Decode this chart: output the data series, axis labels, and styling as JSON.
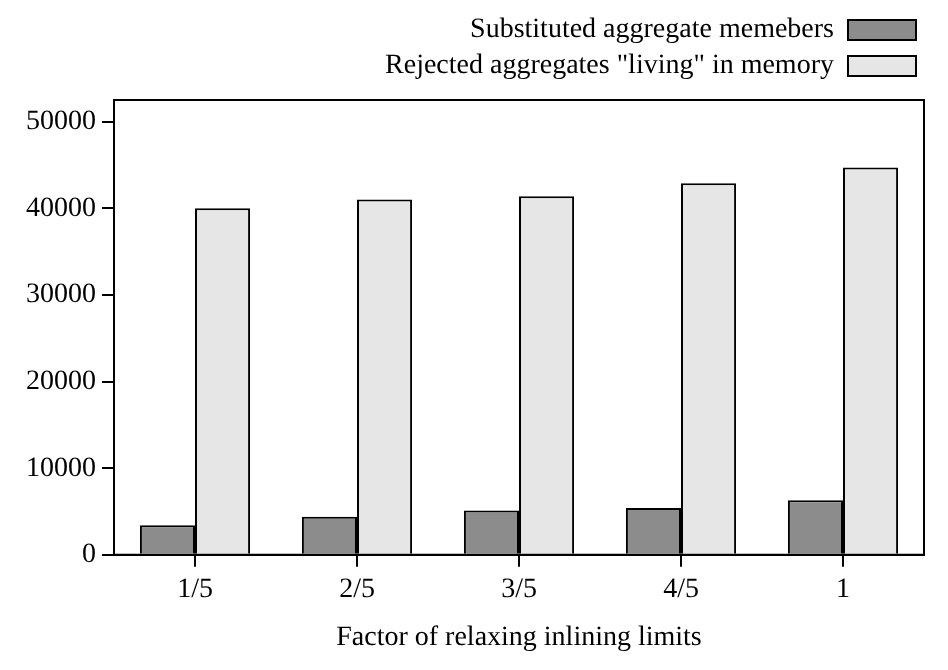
{
  "chart_data": {
    "type": "bar",
    "xlabel": "Factor of relaxing inlining limits",
    "categories": [
      "1/5",
      "2/5",
      "3/5",
      "4/5",
      "1"
    ],
    "series": [
      {
        "name": "Substituted aggregate memebers",
        "color": "#8c8c8c",
        "values": [
          3400,
          4400,
          5100,
          5400,
          6300
        ]
      },
      {
        "name": "Rejected aggregates \"living\" in memory",
        "color": "#e6e6e6",
        "values": [
          40000,
          41000,
          41400,
          42900,
          44700
        ]
      }
    ],
    "ylim": [
      0,
      52500
    ],
    "yticks": [
      0,
      10000,
      20000,
      30000,
      40000,
      50000
    ],
    "grid": false,
    "legend": "top right"
  }
}
